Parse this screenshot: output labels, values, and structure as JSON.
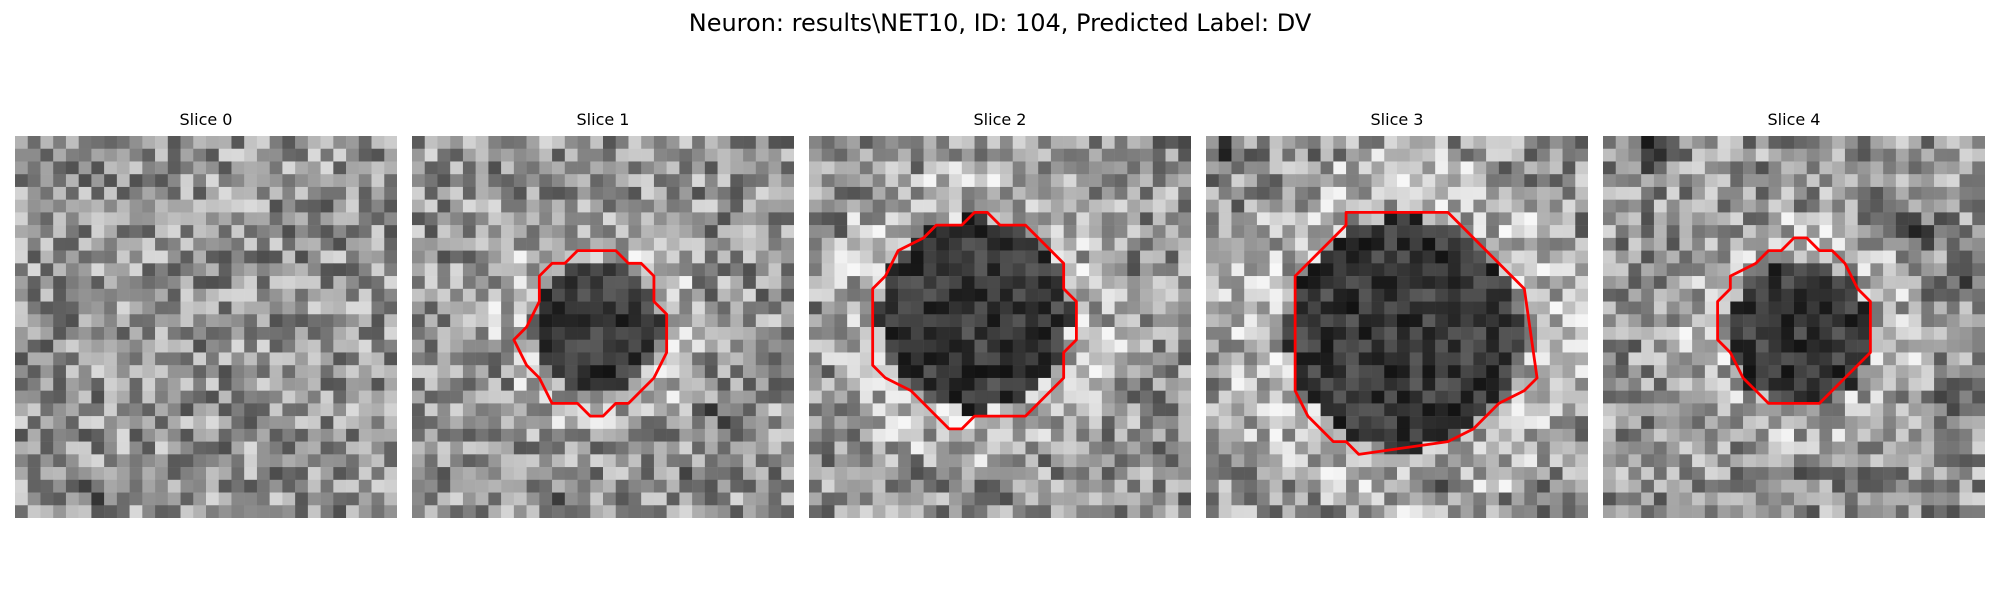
{
  "figure": {
    "title": "Neuron: results\\NET10, ID: 104, Predicted Label: DV",
    "outline_color": "#ff0000",
    "panels": [
      {
        "title": "Slice 0",
        "has_outline": false
      },
      {
        "title": "Slice 1",
        "has_outline": true
      },
      {
        "title": "Slice 2",
        "has_outline": true
      },
      {
        "title": "Slice 3",
        "has_outline": true
      },
      {
        "title": "Slice 4",
        "has_outline": true
      }
    ]
  }
}
